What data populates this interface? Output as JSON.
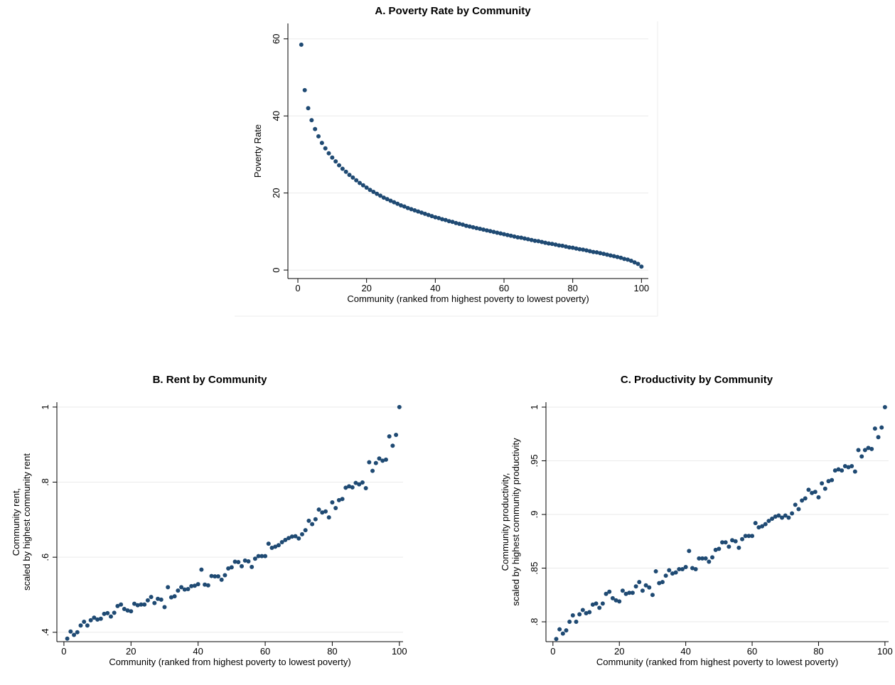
{
  "chart_data": [
    {
      "type": "scatter",
      "title": "A. Poverty Rate by Community",
      "x_label": "Community (ranked from highest poverty to lowest poverty)",
      "y_label": [
        "Poverty Rate"
      ],
      "color": "#1f4a73",
      "grid": true,
      "xlim": [
        -2.9,
        102
      ],
      "ylim": [
        -2.2,
        64
      ],
      "xticks": [
        0,
        20,
        40,
        60,
        80,
        100
      ],
      "yticks": [
        0,
        20,
        40,
        60
      ],
      "x": [
        1,
        2,
        3,
        4,
        5,
        6,
        7,
        8,
        9,
        10,
        11,
        12,
        13,
        14,
        15,
        16,
        17,
        18,
        19,
        20,
        21,
        22,
        23,
        24,
        25,
        26,
        27,
        28,
        29,
        30,
        31,
        32,
        33,
        34,
        35,
        36,
        37,
        38,
        39,
        40,
        41,
        42,
        43,
        44,
        45,
        46,
        47,
        48,
        49,
        50,
        51,
        52,
        53,
        54,
        55,
        56,
        57,
        58,
        59,
        60,
        61,
        62,
        63,
        64,
        65,
        66,
        67,
        68,
        69,
        70,
        71,
        72,
        73,
        74,
        75,
        76,
        77,
        78,
        79,
        80,
        81,
        82,
        83,
        84,
        85,
        86,
        87,
        88,
        89,
        90,
        91,
        92,
        93,
        94,
        95,
        96,
        97,
        98,
        99,
        100
      ],
      "values": [
        58.5,
        46.7,
        42.0,
        38.9,
        36.6,
        34.7,
        33.0,
        31.6,
        30.3,
        29.2,
        28.2,
        27.2,
        26.3,
        25.5,
        24.7,
        24.0,
        23.3,
        22.6,
        22.0,
        21.4,
        20.8,
        20.3,
        19.8,
        19.3,
        18.8,
        18.4,
        18.0,
        17.6,
        17.2,
        16.8,
        16.5,
        16.1,
        15.8,
        15.5,
        15.2,
        14.9,
        14.6,
        14.3,
        14.0,
        13.7,
        13.5,
        13.2,
        13.0,
        12.7,
        12.5,
        12.2,
        12.0,
        11.8,
        11.5,
        11.3,
        11.1,
        10.9,
        10.7,
        10.5,
        10.3,
        10.1,
        9.9,
        9.7,
        9.5,
        9.3,
        9.1,
        8.9,
        8.7,
        8.5,
        8.4,
        8.2,
        8.0,
        7.8,
        7.6,
        7.5,
        7.3,
        7.1,
        6.9,
        6.8,
        6.6,
        6.4,
        6.3,
        6.1,
        5.9,
        5.8,
        5.6,
        5.4,
        5.3,
        5.1,
        4.9,
        4.7,
        4.6,
        4.4,
        4.2,
        4.0,
        3.8,
        3.6,
        3.4,
        3.2,
        2.9,
        2.7,
        2.4,
        2.0,
        1.6,
        0.9
      ]
    },
    {
      "type": "scatter",
      "title": "B. Rent by Community",
      "x_label": "Community (ranked from highest poverty to lowest poverty)",
      "y_label": [
        "Community rent,",
        "scaled by highest community rent"
      ],
      "color": "#1f4a73",
      "grid": true,
      "xlim": [
        -2.1,
        101.1
      ],
      "ylim": [
        0.375,
        1.013
      ],
      "xticks": [
        0,
        20,
        40,
        60,
        80,
        100
      ],
      "yticks": [
        {
          "value": 0.4,
          "label": ".4"
        },
        {
          "value": 0.6,
          "label": ".6"
        },
        {
          "value": 0.8,
          "label": ".8"
        },
        1
      ],
      "x": [
        1,
        2,
        3,
        4,
        5,
        6,
        7,
        8,
        9,
        10,
        11,
        12,
        13,
        14,
        15,
        16,
        17,
        18,
        19,
        20,
        21,
        22,
        23,
        24,
        25,
        26,
        27,
        28,
        29,
        30,
        31,
        32,
        33,
        34,
        35,
        36,
        37,
        38,
        39,
        40,
        41,
        42,
        43,
        44,
        45,
        46,
        47,
        48,
        49,
        50,
        51,
        52,
        53,
        54,
        55,
        56,
        57,
        58,
        59,
        60,
        61,
        62,
        63,
        64,
        65,
        66,
        67,
        68,
        69,
        70,
        71,
        72,
        73,
        74,
        75,
        76,
        77,
        78,
        79,
        80,
        81,
        82,
        83,
        84,
        85,
        86,
        87,
        88,
        89,
        90,
        91,
        92,
        93,
        94,
        95,
        96,
        97,
        98,
        99,
        100
      ],
      "values": [
        0.383,
        0.402,
        0.393,
        0.4,
        0.418,
        0.428,
        0.418,
        0.432,
        0.439,
        0.434,
        0.436,
        0.449,
        0.451,
        0.442,
        0.452,
        0.47,
        0.474,
        0.462,
        0.458,
        0.456,
        0.476,
        0.472,
        0.474,
        0.474,
        0.485,
        0.494,
        0.478,
        0.489,
        0.487,
        0.467,
        0.52,
        0.493,
        0.496,
        0.511,
        0.52,
        0.514,
        0.515,
        0.523,
        0.524,
        0.528,
        0.567,
        0.527,
        0.525,
        0.55,
        0.549,
        0.549,
        0.54,
        0.552,
        0.57,
        0.573,
        0.588,
        0.587,
        0.576,
        0.591,
        0.589,
        0.574,
        0.596,
        0.603,
        0.603,
        0.603,
        0.636,
        0.625,
        0.628,
        0.632,
        0.64,
        0.646,
        0.651,
        0.655,
        0.656,
        0.65,
        0.661,
        0.672,
        0.697,
        0.688,
        0.701,
        0.727,
        0.719,
        0.722,
        0.706,
        0.746,
        0.731,
        0.752,
        0.755,
        0.785,
        0.789,
        0.786,
        0.798,
        0.794,
        0.799,
        0.784,
        0.853,
        0.83,
        0.851,
        0.863,
        0.857,
        0.86,
        0.922,
        0.897,
        0.926,
        1.0
      ]
    },
    {
      "type": "scatter",
      "title": "C. Productivity by Community",
      "x_label": "Community (ranked from highest poverty to lowest poverty)",
      "y_label": [
        "Community productivity,",
        "scaled by highest community productivity"
      ],
      "color": "#1f4a73",
      "grid": true,
      "xlim": [
        -2.1,
        101.1
      ],
      "ylim": [
        0.7815,
        1.0046
      ],
      "xticks": [
        0,
        20,
        40,
        60,
        80,
        100
      ],
      "yticks": [
        {
          "value": 0.8,
          "label": ".8"
        },
        {
          "value": 0.85,
          "label": ".85"
        },
        {
          "value": 0.9,
          "label": ".9"
        },
        {
          "value": 0.95,
          "label": ".95"
        },
        1
      ],
      "x": [
        1,
        2,
        3,
        4,
        5,
        6,
        7,
        8,
        9,
        10,
        11,
        12,
        13,
        14,
        15,
        16,
        17,
        18,
        19,
        20,
        21,
        22,
        23,
        24,
        25,
        26,
        27,
        28,
        29,
        30,
        31,
        32,
        33,
        34,
        35,
        36,
        37,
        38,
        39,
        40,
        41,
        42,
        43,
        44,
        45,
        46,
        47,
        48,
        49,
        50,
        51,
        52,
        53,
        54,
        55,
        56,
        57,
        58,
        59,
        60,
        61,
        62,
        63,
        64,
        65,
        66,
        67,
        68,
        69,
        70,
        71,
        72,
        73,
        74,
        75,
        76,
        77,
        78,
        79,
        80,
        81,
        82,
        83,
        84,
        85,
        86,
        87,
        88,
        89,
        90,
        91,
        92,
        93,
        94,
        95,
        96,
        97,
        98,
        99,
        100
      ],
      "values": [
        0.784,
        0.793,
        0.789,
        0.792,
        0.8,
        0.806,
        0.8,
        0.807,
        0.811,
        0.808,
        0.809,
        0.816,
        0.817,
        0.813,
        0.817,
        0.826,
        0.828,
        0.822,
        0.82,
        0.819,
        0.829,
        0.826,
        0.827,
        0.827,
        0.833,
        0.837,
        0.829,
        0.834,
        0.832,
        0.825,
        0.847,
        0.836,
        0.837,
        0.843,
        0.848,
        0.845,
        0.846,
        0.849,
        0.849,
        0.851,
        0.866,
        0.85,
        0.849,
        0.859,
        0.859,
        0.859,
        0.856,
        0.86,
        0.867,
        0.868,
        0.874,
        0.874,
        0.87,
        0.876,
        0.875,
        0.869,
        0.877,
        0.88,
        0.88,
        0.88,
        0.892,
        0.888,
        0.889,
        0.891,
        0.894,
        0.896,
        0.898,
        0.899,
        0.897,
        0.899,
        0.897,
        0.901,
        0.909,
        0.905,
        0.913,
        0.915,
        0.923,
        0.92,
        0.921,
        0.916,
        0.929,
        0.924,
        0.931,
        0.932,
        0.941,
        0.942,
        0.941,
        0.945,
        0.944,
        0.945,
        0.94,
        0.96,
        0.954,
        0.96,
        0.962,
        0.961,
        0.98,
        0.972,
        0.981,
        1.0
      ]
    }
  ]
}
